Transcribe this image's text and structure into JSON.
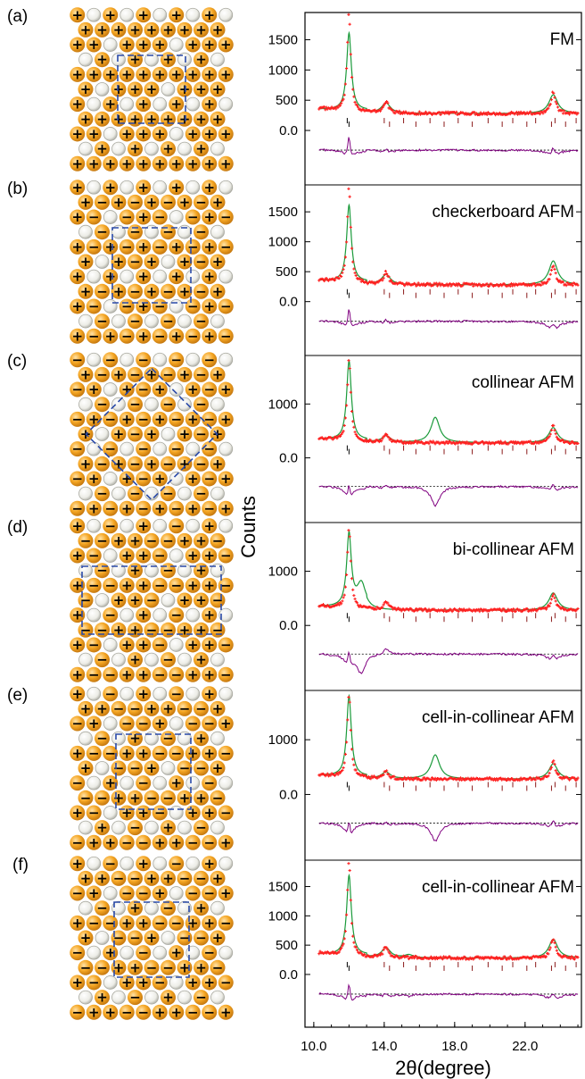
{
  "figure": {
    "ylabel": "Counts",
    "xlabel": "2θ(degree)",
    "x_ticks": [
      "10.0",
      "14.0",
      "18.0",
      "22.0"
    ]
  },
  "colors": {
    "observed": "#ff2020",
    "calculated": "#1a9a3a",
    "difference": "#800080",
    "bragg": "#8b1a1a",
    "spin_atom": "#f5a623",
    "nonmagnetic_atom": "#d8d8d0",
    "cell_outline": "#2a4aa8"
  },
  "panels": [
    {
      "label": "(a)",
      "title": "FM",
      "y_ticks": [
        "1500",
        "1000",
        "500",
        "0.0"
      ]
    },
    {
      "label": "(b)",
      "title": "checkerboard AFM",
      "y_ticks": [
        "1500",
        "1000",
        "500",
        "0.0"
      ]
    },
    {
      "label": "(c)",
      "title": "collinear AFM",
      "y_ticks": [
        "1000",
        "0.0"
      ]
    },
    {
      "label": "(d)",
      "title": "bi-collinear AFM",
      "y_ticks": [
        "1000",
        "0.0"
      ]
    },
    {
      "label": "(e)",
      "title": "cell-in-collinear AFM",
      "y_ticks": [
        "1000",
        "0.0"
      ]
    },
    {
      "label": "(f)",
      "title": "cell-in-collinear AFM",
      "y_ticks": [
        "1500",
        "1000",
        "500",
        "0.0"
      ]
    }
  ],
  "chart_data": [
    {
      "type": "line",
      "title": "FM",
      "xlabel": "2θ(degree)",
      "ylabel": "Counts",
      "xlim": [
        9.5,
        25.2
      ],
      "ylim": [
        -900,
        1950
      ],
      "peaks_observed": [
        {
          "x": 12.0,
          "y": 1900
        },
        {
          "x": 14.1,
          "y": 470
        },
        {
          "x": 23.6,
          "y": 630
        }
      ],
      "peaks_calculated": [
        {
          "x": 12.0,
          "y": 1560
        },
        {
          "x": 14.1,
          "y": 450
        },
        {
          "x": 23.6,
          "y": 590
        }
      ],
      "series": [
        {
          "values": "observed"
        },
        {
          "values": "calculated"
        },
        {
          "values": "difference"
        }
      ]
    },
    {
      "type": "line",
      "title": "checkerboard AFM",
      "xlabel": "2θ(degree)",
      "ylabel": "Counts",
      "xlim": [
        9.5,
        25.2
      ],
      "ylim": [
        -900,
        1950
      ],
      "peaks_observed": [
        {
          "x": 12.0,
          "y": 1900
        },
        {
          "x": 14.1,
          "y": 480
        },
        {
          "x": 23.6,
          "y": 600
        }
      ],
      "peaks_calculated": [
        {
          "x": 12.0,
          "y": 1560
        },
        {
          "x": 14.1,
          "y": 450
        },
        {
          "x": 23.6,
          "y": 680
        }
      ]
    },
    {
      "type": "line",
      "title": "collinear AFM",
      "xlabel": "2θ(degree)",
      "ylabel": "Counts",
      "xlim": [
        9.5,
        25.2
      ],
      "ylim": [
        -1200,
        1900
      ],
      "peaks_observed": [
        {
          "x": 12.0,
          "y": 1800
        },
        {
          "x": 14.1,
          "y": 420
        },
        {
          "x": 23.6,
          "y": 600
        }
      ],
      "peaks_calculated": [
        {
          "x": 12.0,
          "y": 1750
        },
        {
          "x": 14.1,
          "y": 400
        },
        {
          "x": 16.9,
          "y": 750
        },
        {
          "x": 23.6,
          "y": 560
        }
      ]
    },
    {
      "type": "line",
      "title": "bi-collinear AFM",
      "xlabel": "2θ(degree)",
      "ylabel": "Counts",
      "xlim": [
        9.5,
        25.2
      ],
      "ylim": [
        -1200,
        1900
      ],
      "peaks_observed": [
        {
          "x": 12.0,
          "y": 1780
        },
        {
          "x": 14.1,
          "y": 430
        },
        {
          "x": 23.6,
          "y": 570
        }
      ],
      "peaks_calculated": [
        {
          "x": 12.0,
          "y": 1620
        },
        {
          "x": 12.7,
          "y": 720
        },
        {
          "x": 23.6,
          "y": 600
        }
      ]
    },
    {
      "type": "line",
      "title": "cell-in-collinear AFM",
      "xlabel": "2θ(degree)",
      "ylabel": "Counts",
      "xlim": [
        9.5,
        25.2
      ],
      "ylim": [
        -1200,
        1900
      ],
      "peaks_observed": [
        {
          "x": 12.0,
          "y": 1780
        },
        {
          "x": 14.1,
          "y": 420
        },
        {
          "x": 23.6,
          "y": 600
        }
      ],
      "peaks_calculated": [
        {
          "x": 12.0,
          "y": 1750
        },
        {
          "x": 14.1,
          "y": 400
        },
        {
          "x": 16.9,
          "y": 720
        },
        {
          "x": 23.6,
          "y": 560
        }
      ]
    },
    {
      "type": "line",
      "title": "cell-in-collinear AFM",
      "xlabel": "2θ(degree)",
      "ylabel": "Counts",
      "xlim": [
        9.5,
        25.2
      ],
      "ylim": [
        -900,
        1950
      ],
      "peaks_observed": [
        {
          "x": 12.0,
          "y": 1880
        },
        {
          "x": 14.1,
          "y": 470
        },
        {
          "x": 23.6,
          "y": 620
        }
      ],
      "peaks_calculated": [
        {
          "x": 12.0,
          "y": 1640
        },
        {
          "x": 14.1,
          "y": 450
        },
        {
          "x": 15.4,
          "y": 330
        },
        {
          "x": 23.6,
          "y": 600
        }
      ]
    }
  ]
}
